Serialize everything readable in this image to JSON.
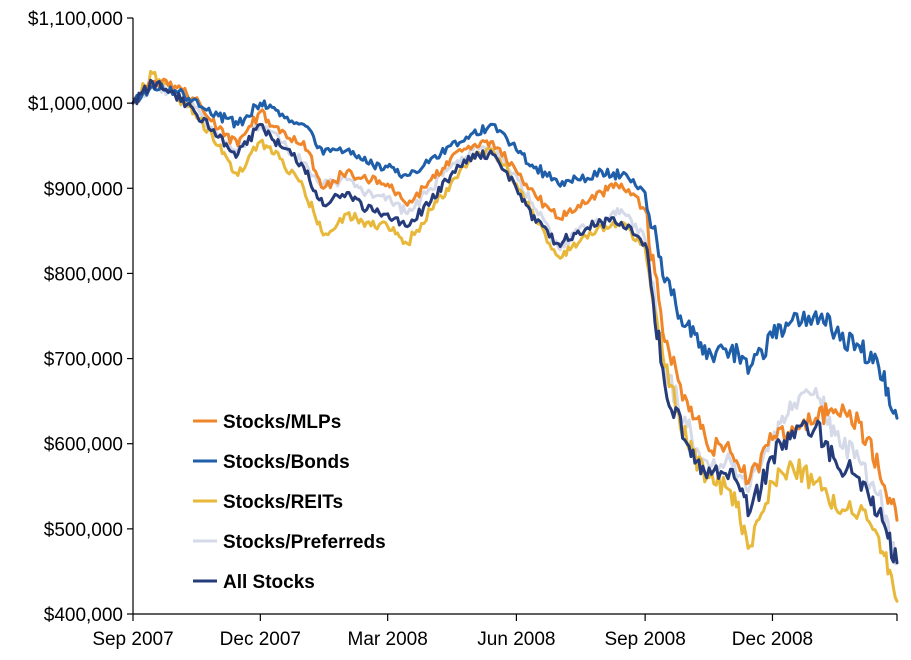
{
  "chart_data": {
    "type": "line",
    "title": "",
    "xlabel": "",
    "ylabel": "",
    "ylim": [
      400000,
      1100000
    ],
    "y_ticks": [
      {
        "value": 400000,
        "label": "$400,000"
      },
      {
        "value": 500000,
        "label": "$500,000"
      },
      {
        "value": 600000,
        "label": "$600,000"
      },
      {
        "value": 700000,
        "label": "$700,000"
      },
      {
        "value": 800000,
        "label": "$800,000"
      },
      {
        "value": 900000,
        "label": "$900,000"
      },
      {
        "value": 1000000,
        "label": "$1,000,000"
      },
      {
        "value": 1100000,
        "label": "$1,100,000"
      }
    ],
    "x_ticks": [
      {
        "value": "2007-09-01",
        "label": "Sep 2007"
      },
      {
        "value": "2007-12-01",
        "label": "Dec 2007"
      },
      {
        "value": "2008-03-01",
        "label": "Mar 2008"
      },
      {
        "value": "2008-06-01",
        "label": "Jun 2008"
      },
      {
        "value": "2008-09-01",
        "label": "Sep 2008"
      },
      {
        "value": "2008-12-01",
        "label": "Dec 2008"
      }
    ],
    "xlim": [
      "2007-09-01",
      "2009-02-28"
    ],
    "grid": false,
    "legend": "inside left",
    "series": [
      {
        "name": "Stocks/MLPs",
        "color": "#f0862a",
        "x": [
          "2007-09-01",
          "2007-09-15",
          "2007-10-01",
          "2007-10-15",
          "2007-11-01",
          "2007-11-15",
          "2007-12-01",
          "2007-12-15",
          "2008-01-01",
          "2008-01-15",
          "2008-02-01",
          "2008-02-15",
          "2008-03-01",
          "2008-03-15",
          "2008-04-01",
          "2008-04-15",
          "2008-05-01",
          "2008-05-15",
          "2008-06-01",
          "2008-06-15",
          "2008-07-01",
          "2008-07-15",
          "2008-08-01",
          "2008-08-15",
          "2008-09-01",
          "2008-09-15",
          "2008-10-01",
          "2008-10-15",
          "2008-11-01",
          "2008-11-15",
          "2008-12-01",
          "2008-12-15",
          "2009-01-01",
          "2009-01-15",
          "2009-02-01",
          "2009-02-15",
          "2009-02-28"
        ],
        "values": [
          1000000,
          1025000,
          1020000,
          1005000,
          970000,
          950000,
          990000,
          965000,
          955000,
          900000,
          920000,
          910000,
          905000,
          880000,
          910000,
          935000,
          950000,
          955000,
          920000,
          890000,
          865000,
          880000,
          895000,
          905000,
          875000,
          720000,
          650000,
          600000,
          590000,
          560000,
          605000,
          620000,
          630000,
          640000,
          625000,
          570000,
          510000
        ]
      },
      {
        "name": "Stocks/Bonds",
        "color": "#1f5ea8",
        "x": [
          "2007-09-01",
          "2007-09-15",
          "2007-10-01",
          "2007-10-15",
          "2007-11-01",
          "2007-11-15",
          "2007-12-01",
          "2007-12-15",
          "2008-01-01",
          "2008-01-15",
          "2008-02-01",
          "2008-02-15",
          "2008-03-01",
          "2008-03-15",
          "2008-04-01",
          "2008-04-15",
          "2008-05-01",
          "2008-05-15",
          "2008-06-01",
          "2008-06-15",
          "2008-07-01",
          "2008-07-15",
          "2008-08-01",
          "2008-08-15",
          "2008-09-01",
          "2008-09-15",
          "2008-10-01",
          "2008-10-15",
          "2008-11-01",
          "2008-11-15",
          "2008-12-01",
          "2008-12-15",
          "2009-01-01",
          "2009-01-15",
          "2009-02-01",
          "2009-02-15",
          "2009-02-28"
        ],
        "values": [
          1000000,
          1020000,
          1015000,
          1005000,
          985000,
          975000,
          1000000,
          985000,
          975000,
          940000,
          945000,
          930000,
          925000,
          915000,
          935000,
          950000,
          965000,
          975000,
          945000,
          925000,
          905000,
          910000,
          920000,
          915000,
          895000,
          790000,
          740000,
          700000,
          710000,
          690000,
          725000,
          745000,
          755000,
          730000,
          715000,
          690000,
          630000
        ]
      },
      {
        "name": "Stocks/REITs",
        "color": "#e8b83a",
        "x": [
          "2007-09-01",
          "2007-09-15",
          "2007-10-01",
          "2007-10-15",
          "2007-11-01",
          "2007-11-15",
          "2007-12-01",
          "2007-12-15",
          "2008-01-01",
          "2008-01-15",
          "2008-02-01",
          "2008-02-15",
          "2008-03-01",
          "2008-03-15",
          "2008-04-01",
          "2008-04-15",
          "2008-05-01",
          "2008-05-15",
          "2008-06-01",
          "2008-06-15",
          "2008-07-01",
          "2008-07-15",
          "2008-08-01",
          "2008-08-15",
          "2008-09-01",
          "2008-09-15",
          "2008-10-01",
          "2008-10-15",
          "2008-11-01",
          "2008-11-15",
          "2008-12-01",
          "2008-12-15",
          "2009-01-01",
          "2009-01-15",
          "2009-02-01",
          "2009-02-15",
          "2009-02-28"
        ],
        "values": [
          1000000,
          1035000,
          1010000,
          990000,
          950000,
          915000,
          955000,
          935000,
          900000,
          845000,
          870000,
          860000,
          855000,
          835000,
          875000,
          905000,
          935000,
          945000,
          905000,
          860000,
          820000,
          835000,
          855000,
          860000,
          830000,
          690000,
          600000,
          560000,
          545000,
          480000,
          555000,
          575000,
          555000,
          525000,
          520000,
          490000,
          415000
        ]
      },
      {
        "name": "Stocks/Preferreds",
        "color": "#d6dae8",
        "x": [
          "2007-09-01",
          "2007-09-15",
          "2007-10-01",
          "2007-10-15",
          "2007-11-01",
          "2007-11-15",
          "2007-12-01",
          "2007-12-15",
          "2008-01-01",
          "2008-01-15",
          "2008-02-01",
          "2008-02-15",
          "2008-03-01",
          "2008-03-15",
          "2008-04-01",
          "2008-04-15",
          "2008-05-01",
          "2008-05-15",
          "2008-06-01",
          "2008-06-15",
          "2008-07-01",
          "2008-07-15",
          "2008-08-01",
          "2008-08-15",
          "2008-09-01",
          "2008-09-15",
          "2008-10-01",
          "2008-10-15",
          "2008-11-01",
          "2008-11-15",
          "2008-12-01",
          "2008-12-15",
          "2009-01-01",
          "2009-01-15",
          "2009-02-01",
          "2009-02-15",
          "2009-02-28"
        ],
        "values": [
          1000000,
          1020000,
          1010000,
          995000,
          960000,
          945000,
          975000,
          955000,
          930000,
          905000,
          910000,
          895000,
          890000,
          870000,
          900000,
          925000,
          945000,
          945000,
          915000,
          875000,
          830000,
          850000,
          860000,
          875000,
          840000,
          690000,
          620000,
          580000,
          580000,
          550000,
          605000,
          640000,
          665000,
          610000,
          580000,
          540000,
          460000
        ]
      },
      {
        "name": "All Stocks",
        "color": "#263c7a",
        "x": [
          "2007-09-01",
          "2007-09-15",
          "2007-10-01",
          "2007-10-15",
          "2007-11-01",
          "2007-11-15",
          "2007-12-01",
          "2007-12-15",
          "2008-01-01",
          "2008-01-15",
          "2008-02-01",
          "2008-02-15",
          "2008-03-01",
          "2008-03-15",
          "2008-04-01",
          "2008-04-15",
          "2008-05-01",
          "2008-05-15",
          "2008-06-01",
          "2008-06-15",
          "2008-07-01",
          "2008-07-15",
          "2008-08-01",
          "2008-08-15",
          "2008-09-01",
          "2008-09-15",
          "2008-10-01",
          "2008-10-15",
          "2008-11-01",
          "2008-11-15",
          "2008-12-01",
          "2008-12-15",
          "2009-01-01",
          "2009-01-15",
          "2009-02-01",
          "2009-02-15",
          "2009-02-28"
        ],
        "values": [
          1000000,
          1025000,
          1010000,
          990000,
          960000,
          940000,
          975000,
          950000,
          925000,
          880000,
          895000,
          875000,
          870000,
          855000,
          885000,
          915000,
          940000,
          940000,
          900000,
          860000,
          835000,
          850000,
          860000,
          860000,
          835000,
          670000,
          600000,
          560000,
          570000,
          520000,
          585000,
          615000,
          620000,
          580000,
          560000,
          520000,
          460000
        ]
      }
    ],
    "legend_entries": [
      "Stocks/MLPs",
      "Stocks/Bonds",
      "Stocks/REITs",
      "Stocks/Preferreds",
      "All Stocks"
    ]
  }
}
